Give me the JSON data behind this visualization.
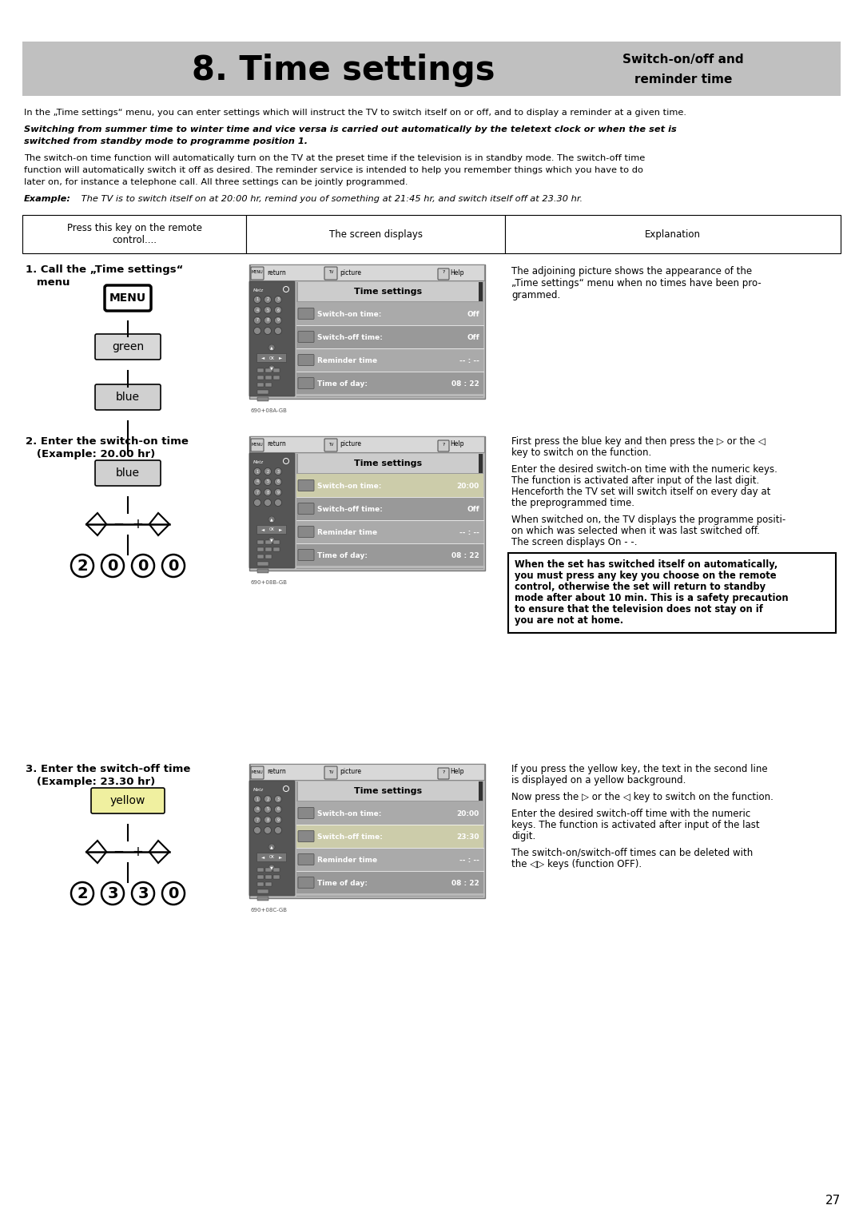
{
  "page_bg": "#ffffff",
  "header_bg": "#c0c0c0",
  "header_title": "8. Time settings",
  "header_subtitle_line1": "Switch-on/off and",
  "header_subtitle_line2": "reminder time",
  "intro_text1": "In the „Time settings“ menu, you can enter settings which will instruct the TV to switch itself on or off, and to display a reminder at a given time.",
  "intro_bold1_line1": "Switching from summer time to winter time and vice versa is carried out automatically by the teletext clock or when the set is",
  "intro_bold1_line2": "switched from standby mode to programme position 1.",
  "intro_text2_line1": "The switch-on time function will automatically turn on the TV at the preset time if the television is in standby mode. The switch-off time",
  "intro_text2_line2": "function will automatically switch it off as desired. The reminder service is intended to help you remember things which you have to do",
  "intro_text2_line3": "later on, for instance a telephone call. All three settings can be jointly programmed.",
  "example_bold": "Example:",
  "example_text": " The TV is to switch itself on at 20:00 hr, remind you of something at 21:45 hr, and switch itself off at 23.30 hr.",
  "col1_header": "Press this key on the remote\ncontrol....",
  "col2_header": "The screen displays",
  "col3_header": "Explanation",
  "section1_label_line1": "1. Call the „Time settings“",
  "section1_label_line2": "   menu",
  "section1_expl_line1": "The adjoining picture shows the appearance of the",
  "section1_expl_line2": "„Time settings“ menu when no times have been pro-",
  "section1_expl_line3": "grammed.",
  "section2_label_line1": "2. Enter the switch-on time",
  "section2_label_line2": "   (Example: 20.00 hr)",
  "section2_expl": [
    "First press the blue key and then press the ▷ or the ◁",
    "key to switch on the function.",
    "",
    "Enter the desired switch-on time with the numeric keys.",
    "The function is activated after input of the last digit.",
    "Henceforth the TV set will switch itself on every day at",
    "the preprogrammed time.",
    "",
    "When switched on, the TV displays the programme positi-",
    "on which was selected when it was last switched off.",
    "The screen displays On - -."
  ],
  "section2_warning": [
    "When the set has switched itself on automatically,",
    "you must press any key you choose on the remote",
    "control, otherwise the set will return to standby",
    "mode after about 10 min. This is a safety precaution",
    "to ensure that the television does not stay on if",
    "you are not at home."
  ],
  "section3_label_line1": "3. Enter the switch-off time",
  "section3_label_line2": "   (Example: 23.30 hr)",
  "section3_expl": [
    "If you press the yellow key, the text in the second line",
    "is displayed on a yellow background.",
    "",
    "Now press the ▷ or the ◁ key to switch on the function.",
    "",
    "Enter the desired switch-off time with the numeric",
    "keys. The function is activated after input of the last",
    "digit.",
    "",
    "The switch-on/switch-off times can be deleted with",
    "the ◁▷ keys (function OFF)."
  ],
  "page_number": "27",
  "screen1_rows": [
    [
      "Switch-on time:",
      "Off"
    ],
    [
      "Switch-off time:",
      "Off"
    ],
    [
      "Reminder time",
      "-- : --"
    ],
    [
      "Time of day:",
      "08 : 22"
    ]
  ],
  "screen1_code": "690+08A-GB",
  "screen1_highlight": -1,
  "screen2_rows": [
    [
      "Switch-on time:",
      "20:00"
    ],
    [
      "Switch-off time:",
      "Off"
    ],
    [
      "Reminder time",
      "-- : --"
    ],
    [
      "Time of day:",
      "08 : 22"
    ]
  ],
  "screen2_code": "690+08B-GB",
  "screen2_highlight": 0,
  "screen3_rows": [
    [
      "Switch-on time:",
      "20:00"
    ],
    [
      "Switch-off time:",
      "23:30"
    ],
    [
      "Reminder time",
      "-- : --"
    ],
    [
      "Time of day:",
      "08 : 22"
    ]
  ],
  "screen3_code": "690+08C-GB",
  "screen3_highlight": 1
}
